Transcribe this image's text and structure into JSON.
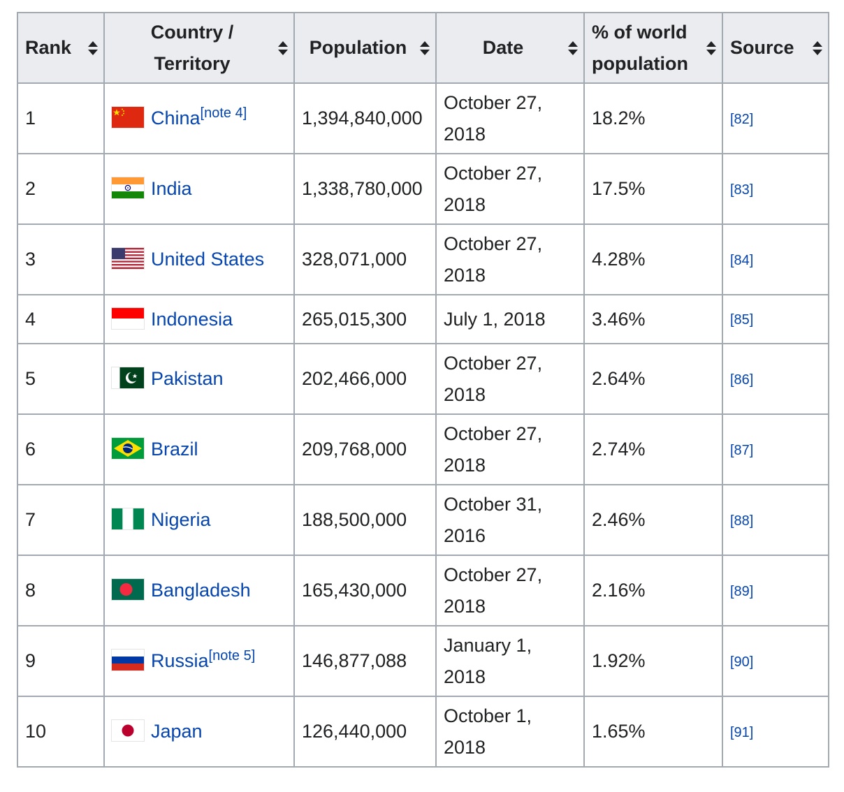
{
  "headers": {
    "rank": "Rank",
    "country": "Country / Territory",
    "population": "Population",
    "date": "Date",
    "percent": "% of world population",
    "source": "Source"
  },
  "rows": [
    {
      "rank": "1",
      "country": "China",
      "note": "[note 4]",
      "flag": "china-flag-icon",
      "population": "1,394,840,000",
      "date": "October 27, 2018",
      "percent": "18.2%",
      "source": "[82]"
    },
    {
      "rank": "2",
      "country": "India",
      "note": "",
      "flag": "india-flag-icon",
      "population": "1,338,780,000",
      "date": "October 27, 2018",
      "percent": "17.5%",
      "source": "[83]"
    },
    {
      "rank": "3",
      "country": "United States",
      "note": "",
      "flag": "united-states-flag-icon",
      "population": "328,071,000",
      "date": "October 27, 2018",
      "percent": "4.28%",
      "source": "[84]"
    },
    {
      "rank": "4",
      "country": "Indonesia",
      "note": "",
      "flag": "indonesia-flag-icon",
      "population": "265,015,300",
      "date": "July 1, 2018",
      "percent": "3.46%",
      "source": "[85]"
    },
    {
      "rank": "5",
      "country": "Pakistan",
      "note": "",
      "flag": "pakistan-flag-icon",
      "population": "202,466,000",
      "date": "October 27, 2018",
      "percent": "2.64%",
      "source": "[86]"
    },
    {
      "rank": "6",
      "country": "Brazil",
      "note": "",
      "flag": "brazil-flag-icon",
      "population": "209,768,000",
      "date": "October 27, 2018",
      "percent": "2.74%",
      "source": "[87]"
    },
    {
      "rank": "7",
      "country": "Nigeria",
      "note": "",
      "flag": "nigeria-flag-icon",
      "population": "188,500,000",
      "date": "October 31, 2016",
      "percent": "2.46%",
      "source": "[88]"
    },
    {
      "rank": "8",
      "country": "Bangladesh",
      "note": "",
      "flag": "bangladesh-flag-icon",
      "population": "165,430,000",
      "date": "October 27, 2018",
      "percent": "2.16%",
      "source": "[89]"
    },
    {
      "rank": "9",
      "country": "Russia",
      "note": "[note 5]",
      "flag": "russia-flag-icon",
      "population": "146,877,088",
      "date": "January 1, 2018",
      "percent": "1.92%",
      "source": "[90]"
    },
    {
      "rank": "10",
      "country": "Japan",
      "note": "",
      "flag": "japan-flag-icon",
      "population": "126,440,000",
      "date": "October 1, 2018",
      "percent": "1.65%",
      "source": "[91]"
    }
  ],
  "colors": {
    "header_bg": "#eaecf0",
    "border": "#a2a9b1",
    "link": "#0645ad",
    "text": "#202122"
  }
}
